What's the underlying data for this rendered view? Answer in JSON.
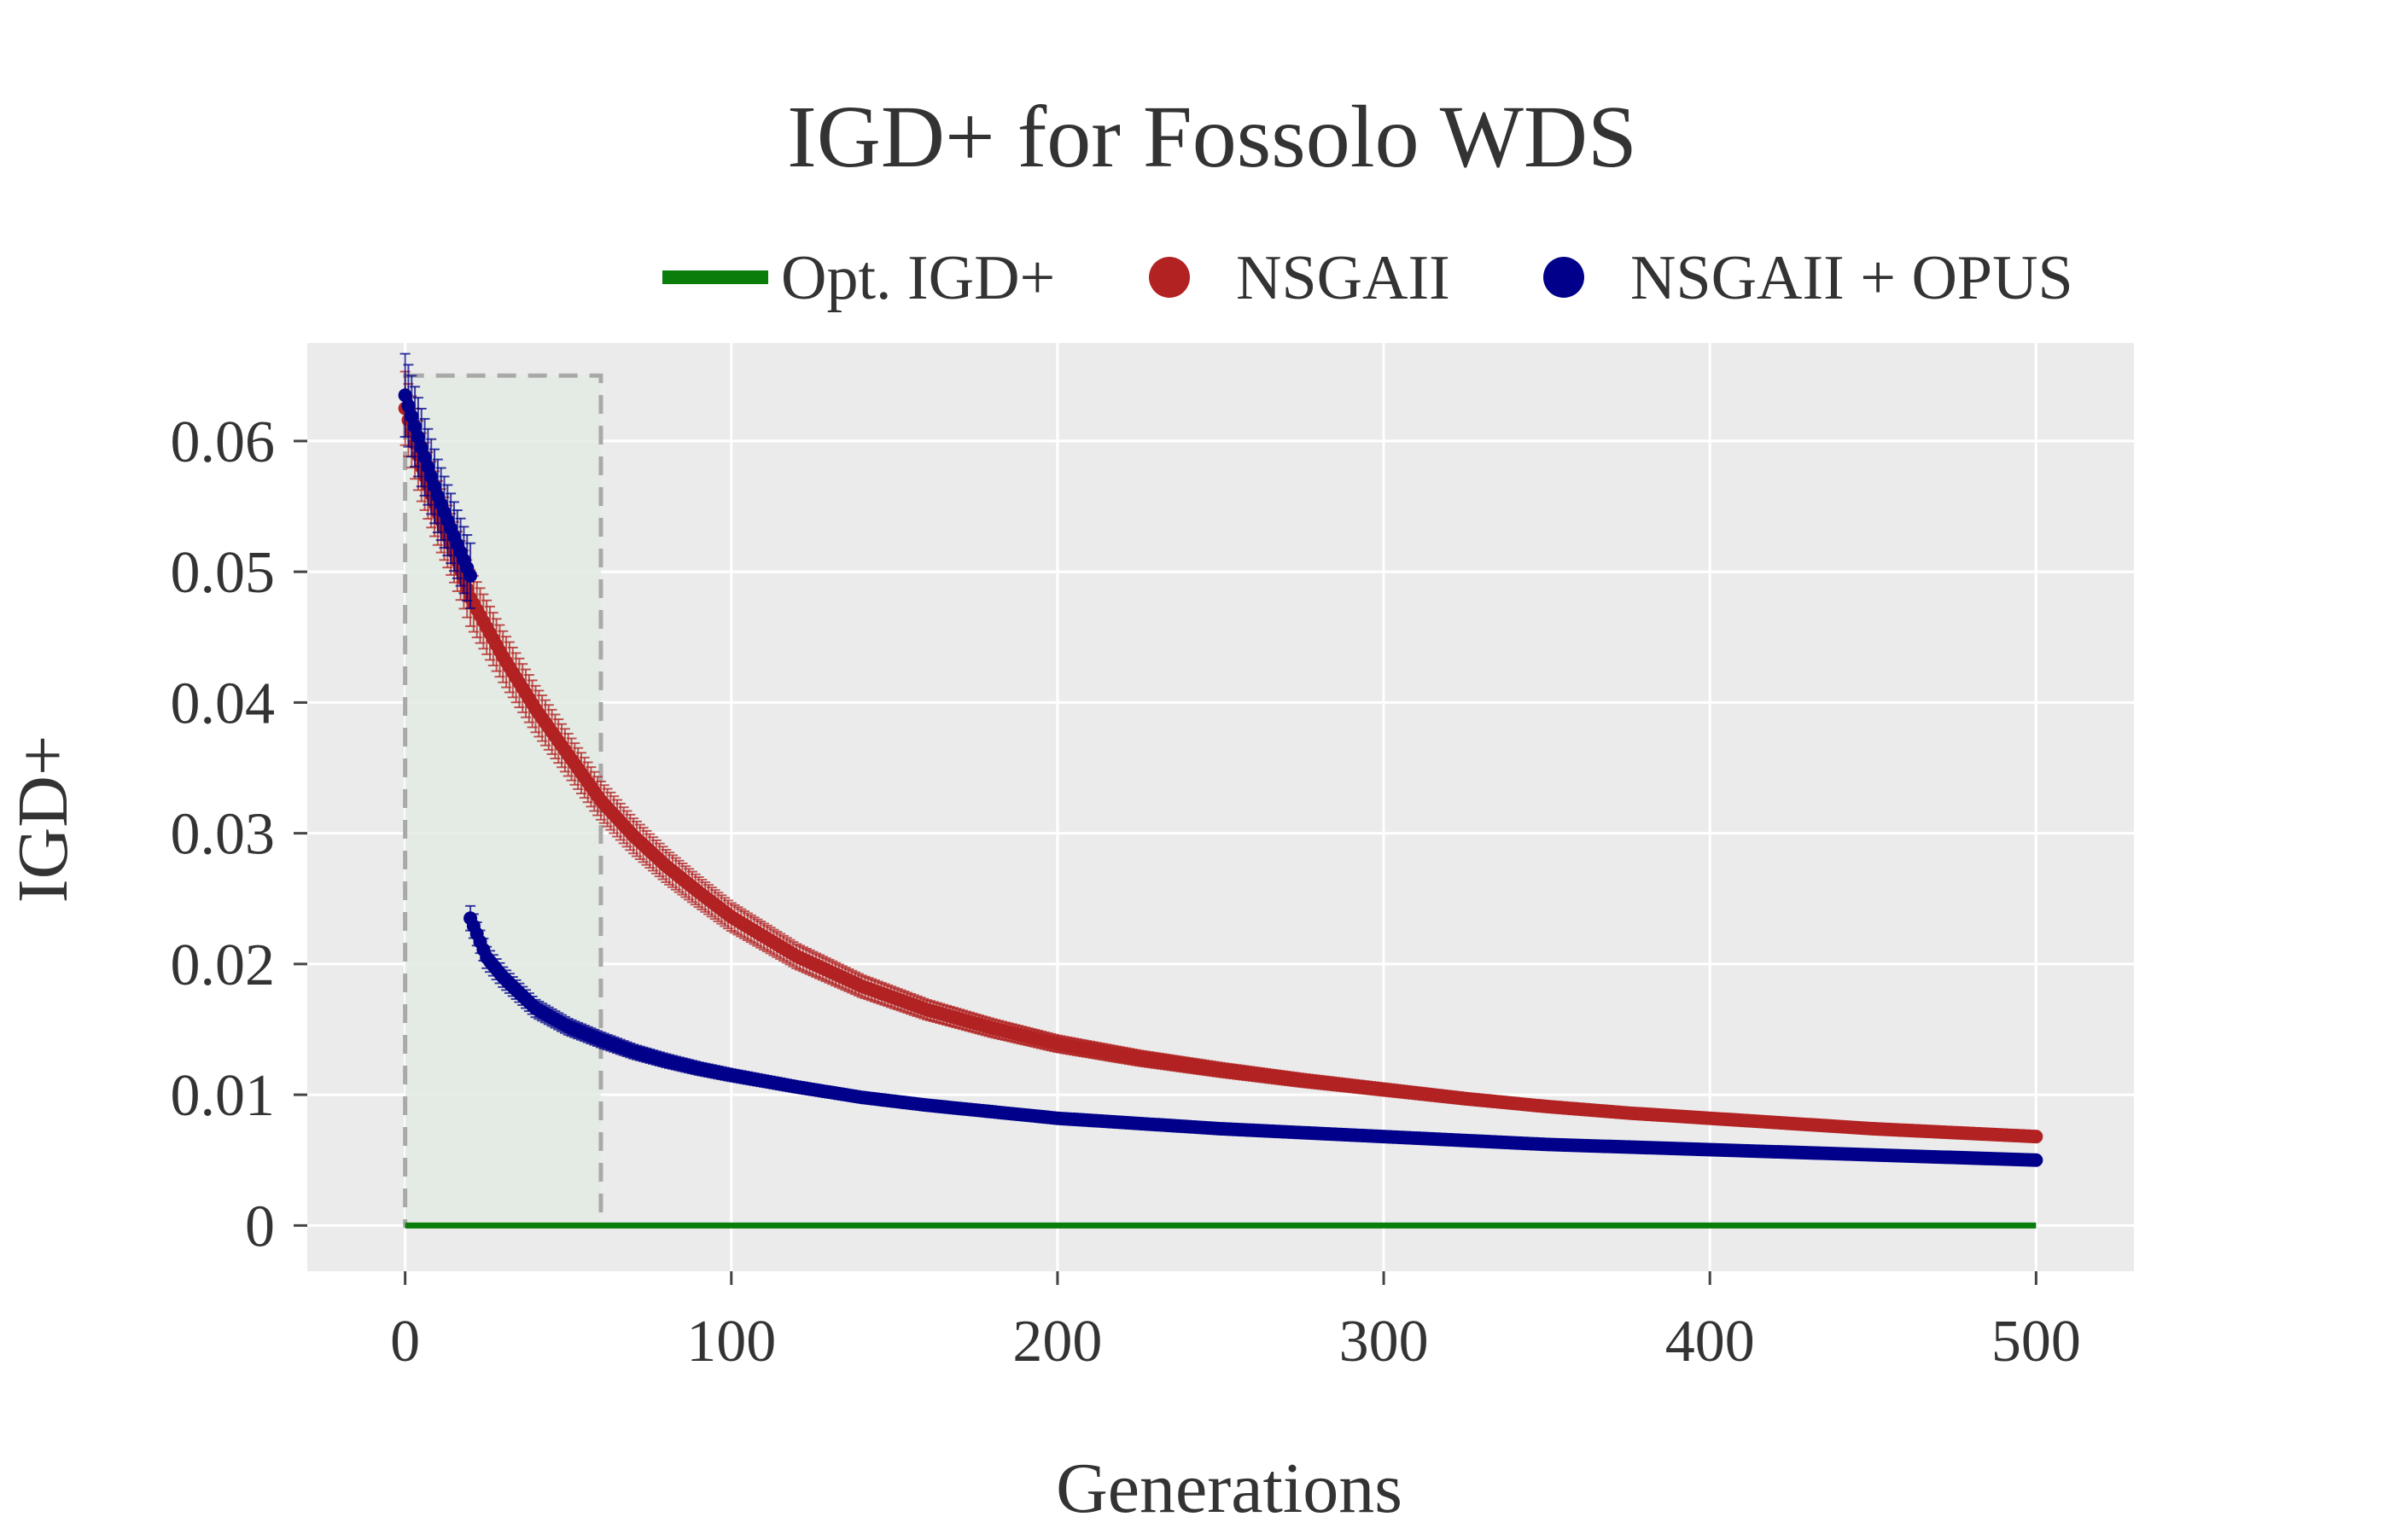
{
  "chart_data": {
    "type": "line",
    "title": "IGD+ for Fossolo WDS",
    "xlabel": "Generations",
    "ylabel": "IGD+",
    "xlim": [
      -30,
      530
    ],
    "ylim": [
      -0.0035,
      0.0675
    ],
    "x_ticks": [
      0,
      100,
      200,
      300,
      400,
      500
    ],
    "x_tick_labels": [
      "0",
      "100",
      "200",
      "300",
      "400",
      "500"
    ],
    "y_ticks": [
      0,
      0.01,
      0.02,
      0.03,
      0.04,
      0.05,
      0.06
    ],
    "y_tick_labels": [
      "0",
      "0.01",
      "0.02",
      "0.03",
      "0.04",
      "0.05",
      "0.06"
    ],
    "grid": true,
    "legend_position": "top",
    "highlight_region": {
      "x": [
        0,
        60
      ],
      "y": [
        0,
        0.065
      ]
    },
    "series": [
      {
        "name": "Opt. IGD+",
        "kind": "line",
        "color": "#0b7d0b",
        "x": [
          0,
          500
        ],
        "y": [
          0,
          0
        ]
      },
      {
        "name": "NSGAII",
        "kind": "points",
        "color": "#b22222",
        "x": [
          0,
          5,
          10,
          15,
          20,
          30,
          40,
          50,
          60,
          70,
          80,
          90,
          100,
          120,
          140,
          160,
          180,
          200,
          225,
          250,
          275,
          300,
          325,
          350,
          375,
          400,
          425,
          450,
          475,
          500
        ],
        "y": [
          0.0625,
          0.058,
          0.0545,
          0.0515,
          0.048,
          0.0435,
          0.0395,
          0.036,
          0.0325,
          0.0298,
          0.0275,
          0.0255,
          0.0236,
          0.0206,
          0.0183,
          0.0165,
          0.0151,
          0.0139,
          0.0128,
          0.0119,
          0.0111,
          0.0104,
          0.0097,
          0.0091,
          0.0086,
          0.0082,
          0.0078,
          0.0074,
          0.0071,
          0.0068
        ]
      },
      {
        "name": "NSGAII + OPUS",
        "kind": "points",
        "color": "#00008b",
        "segments": [
          {
            "x": [
              0,
              5,
              10,
              15,
              20
            ],
            "y": [
              0.0635,
              0.0595,
              0.0558,
              0.0527,
              0.0497
            ]
          },
          {
            "x": [
              20,
              25,
              30,
              40,
              50,
              60,
              70,
              80,
              90,
              100,
              120,
              140,
              160,
              180,
              200,
              225,
              250,
              275,
              300,
              325,
              350,
              375,
              400,
              425,
              450,
              475,
              500
            ],
            "y": [
              0.0235,
              0.0205,
              0.019,
              0.0166,
              0.0152,
              0.0142,
              0.0133,
              0.0126,
              0.012,
              0.0115,
              0.0106,
              0.0098,
              0.0092,
              0.0087,
              0.0082,
              0.0078,
              0.0074,
              0.0071,
              0.0068,
              0.0065,
              0.0062,
              0.006,
              0.0058,
              0.0056,
              0.0054,
              0.0052,
              0.005
            ]
          }
        ]
      }
    ]
  }
}
